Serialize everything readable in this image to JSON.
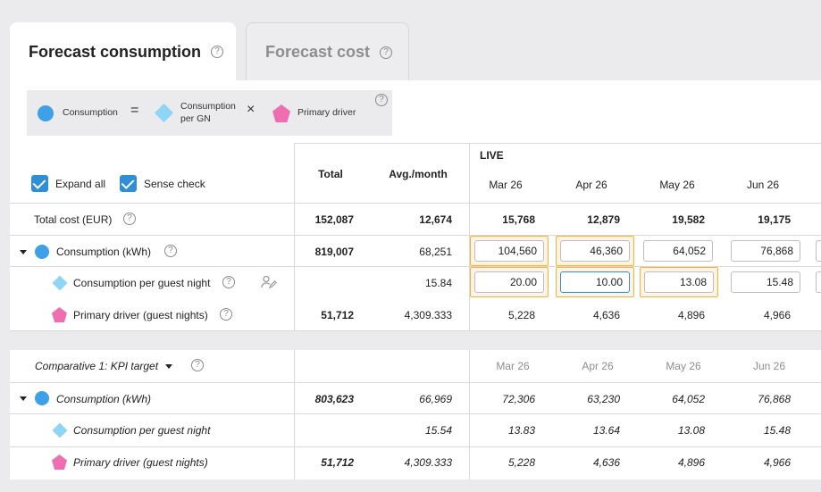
{
  "tabs": {
    "active": "Forecast consumption",
    "inactive": "Forecast cost"
  },
  "formula": {
    "consumption": "Consumption",
    "equals": "=",
    "cpgn_line1": "Consumption",
    "cpgn_line2": "per GN",
    "times": "×",
    "driver": "Primary driver"
  },
  "toolbar": {
    "expand_all": "Expand all",
    "sense_check": "Sense check"
  },
  "headers": {
    "total": "Total",
    "avg": "Avg./month",
    "live": "LIVE",
    "months": [
      "Mar 26",
      "Apr 26",
      "May 26",
      "Jun 26"
    ]
  },
  "rows": {
    "total_cost": {
      "label": "Total cost (EUR)",
      "total": "152,087",
      "avg": "12,674",
      "values": [
        "15,768",
        "12,879",
        "19,582",
        "19,175"
      ]
    },
    "consumption": {
      "label": "Consumption (kWh)",
      "total": "819,007",
      "avg": "68,251",
      "values": [
        "104,560",
        "46,360",
        "64,052",
        "76,868"
      ]
    },
    "cpgn": {
      "label": "Consumption per guest night",
      "total": "",
      "avg": "15.84",
      "values": [
        "20.00",
        "10.00",
        "13.08",
        "15.48"
      ]
    },
    "driver": {
      "label": "Primary driver (guest nights)",
      "total": "51,712",
      "avg": "4,309.333",
      "values": [
        "5,228",
        "4,636",
        "4,896",
        "4,966"
      ]
    }
  },
  "comparative": {
    "selector": "Comparative 1:  KPI target",
    "months": [
      "Mar 26",
      "Apr 26",
      "May 26",
      "Jun 26"
    ],
    "consumption": {
      "label": "Consumption (kWh)",
      "total": "803,623",
      "avg": "66,969",
      "values": [
        "72,306",
        "63,230",
        "64,052",
        "76,868"
      ]
    },
    "cpgn": {
      "label": "Consumption per guest night",
      "total": "",
      "avg": "15.54",
      "values": [
        "13.83",
        "13.64",
        "13.08",
        "15.48"
      ]
    },
    "driver": {
      "label": "Primary driver (guest nights)",
      "total": "51,712",
      "avg": "4,309.333",
      "values": [
        "5,228",
        "4,636",
        "4,896",
        "4,966"
      ]
    }
  },
  "colors": {
    "consumption": "#3ea0e6",
    "cpgn": "#8ed5f6",
    "driver": "#ef6eb1",
    "highlight": "#f2b441",
    "checkbox": "#2f8fd6"
  }
}
